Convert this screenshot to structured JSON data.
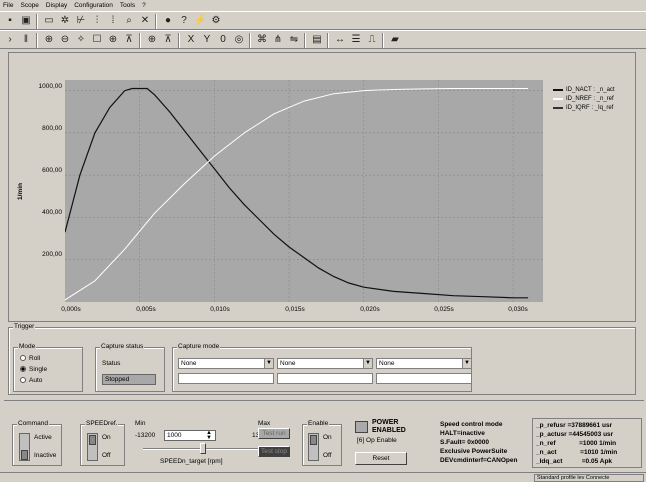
{
  "menu": [
    "File",
    "Scope",
    "Display",
    "Configuration",
    "Tools",
    "?"
  ],
  "chart": {
    "y_axis_label": "1/min",
    "y_ticks": [
      "1000,00",
      "800,00",
      "600,00",
      "400,00",
      "200,00"
    ],
    "x_ticks": [
      "0,000s",
      "0,005s",
      "0,010s",
      "0,015s",
      "0,020s",
      "0,025s",
      "0,030s"
    ],
    "legend": [
      {
        "label": "ID_NACT : _n_act",
        "color": "#111111"
      },
      {
        "label": "ID_NREF : _n_ref",
        "color": "#ffffff"
      },
      {
        "label": "ID_IQRF : _Iq_ref",
        "color": "#333333"
      }
    ]
  },
  "chart_data": {
    "type": "line",
    "ylabel": "1/min",
    "xlim": [
      0,
      0.032
    ],
    "ylim": [
      0,
      1050
    ],
    "series": [
      {
        "name": "ID_NACT : _n_act",
        "color": "#111111",
        "x": [
          0,
          0.001,
          0.002,
          0.003,
          0.004,
          0.0045,
          0.0055,
          0.006,
          0.007,
          0.008,
          0.009,
          0.01,
          0.011,
          0.012,
          0.013,
          0.014,
          0.015,
          0.016,
          0.017,
          0.018,
          0.019,
          0.02,
          0.022,
          0.024,
          0.026,
          0.028,
          0.03,
          0.031
        ],
        "y": [
          330,
          600,
          800,
          920,
          1000,
          1010,
          1010,
          980,
          900,
          810,
          720,
          630,
          540,
          460,
          390,
          320,
          260,
          210,
          160,
          120,
          90,
          70,
          50,
          40,
          30,
          25,
          20,
          20
        ]
      },
      {
        "name": "ID_NREF : _n_ref",
        "color": "#ffffff",
        "x": [
          0,
          0.002,
          0.004,
          0.006,
          0.008,
          0.01,
          0.012,
          0.014,
          0.016,
          0.018,
          0.02,
          0.022,
          0.024,
          0.026,
          0.028,
          0.03,
          0.031
        ],
        "y": [
          10,
          100,
          250,
          420,
          560,
          690,
          800,
          890,
          950,
          985,
          1000,
          1005,
          1008,
          1010,
          1010,
          1010,
          1010
        ]
      },
      {
        "name": "ID_IQRF : _Iq_ref",
        "color": "#333333",
        "x": [],
        "y": []
      }
    ]
  },
  "trigger": {
    "title": "Trigger",
    "mode_title": "Mode",
    "modes": [
      {
        "label": "Roll",
        "selected": false
      },
      {
        "label": "Single",
        "selected": true
      },
      {
        "label": "Auto",
        "selected": false
      }
    ],
    "capture_status_title": "Capture status",
    "status_label": "Status",
    "status_value": "Stopped",
    "capture_mode_title": "Capture mode",
    "combos": [
      "None",
      "None",
      "None"
    ]
  },
  "bottom": {
    "command_title": "Command",
    "command_active": "Active",
    "command_inactive": "Inactive",
    "speedref_title": "SPEEDref.",
    "on": "On",
    "off": "Off",
    "min_label": "Min",
    "max_label": "Max",
    "min_value": "-13200",
    "max_value": "13200",
    "target_value": "1000",
    "slider_caption": "SPEEDn_target [rpm]",
    "test_run": "Test run",
    "test_stop": "Test stop",
    "enable_title": "Enable",
    "power_line1": "POWER",
    "power_line2": "ENABLED",
    "op_enable": "[6] Op Enable",
    "reset": "Reset",
    "status_lines": [
      "Speed control mode",
      "HALT=inactive",
      "S.Fault= 0x0000",
      "Exclusive PowerSuite",
      "DEVcmdinterf=CANOpen"
    ],
    "readouts": [
      [
        "_p_refusr",
        "=37889661",
        "usr"
      ],
      [
        "_p_actusr",
        "=44545003",
        "usr"
      ],
      [
        "_n_ref",
        "=1000",
        "1/min"
      ],
      [
        "_n_act",
        "=1010",
        "1/min"
      ],
      [
        "_Idq_act",
        "=0.05",
        "Apk"
      ]
    ],
    "statusbar_text": "Standard profile lev Connecte"
  }
}
